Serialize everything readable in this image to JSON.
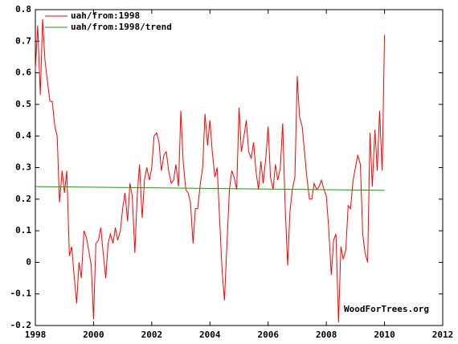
{
  "chart_data": {
    "type": "line",
    "annotation": "WoodForTrees.org",
    "xlim": [
      1998,
      2012
    ],
    "xticks": [
      1998,
      2000,
      2002,
      2004,
      2006,
      2008,
      2010,
      2012
    ],
    "ylim": [
      -0.2,
      0.8
    ],
    "yticks": [
      -0.2,
      -0.1,
      0,
      0.1,
      0.2,
      0.3,
      0.4,
      0.5,
      0.6,
      0.7,
      0.8
    ],
    "legend": "upper left",
    "series": [
      {
        "name": "uah/from:1998",
        "color": "#ff0000",
        "x": [
          1998.0,
          1998.08,
          1998.17,
          1998.25,
          1998.33,
          1998.42,
          1998.5,
          1998.58,
          1998.67,
          1998.75,
          1998.83,
          1998.92,
          1999.0,
          1999.08,
          1999.17,
          1999.25,
          1999.33,
          1999.42,
          1999.5,
          1999.58,
          1999.67,
          1999.75,
          1999.83,
          1999.92,
          2000.0,
          2000.08,
          2000.17,
          2000.25,
          2000.33,
          2000.42,
          2000.5,
          2000.58,
          2000.67,
          2000.75,
          2000.83,
          2000.92,
          2001.0,
          2001.08,
          2001.17,
          2001.25,
          2001.33,
          2001.42,
          2001.5,
          2001.58,
          2001.67,
          2001.75,
          2001.83,
          2001.92,
          2002.0,
          2002.08,
          2002.17,
          2002.25,
          2002.33,
          2002.42,
          2002.5,
          2002.58,
          2002.67,
          2002.75,
          2002.83,
          2002.92,
          2003.0,
          2003.08,
          2003.17,
          2003.25,
          2003.33,
          2003.42,
          2003.5,
          2003.58,
          2003.67,
          2003.75,
          2003.83,
          2003.92,
          2004.0,
          2004.08,
          2004.17,
          2004.25,
          2004.33,
          2004.42,
          2004.5,
          2004.58,
          2004.67,
          2004.75,
          2004.83,
          2004.92,
          2005.0,
          2005.08,
          2005.17,
          2005.25,
          2005.33,
          2005.42,
          2005.5,
          2005.58,
          2005.67,
          2005.75,
          2005.83,
          2005.92,
          2006.0,
          2006.08,
          2006.17,
          2006.25,
          2006.33,
          2006.42,
          2006.5,
          2006.58,
          2006.67,
          2006.75,
          2006.83,
          2006.92,
          2007.0,
          2007.08,
          2007.17,
          2007.25,
          2007.33,
          2007.42,
          2007.5,
          2007.58,
          2007.67,
          2007.75,
          2007.83,
          2007.92,
          2008.0,
          2008.08,
          2008.17,
          2008.25,
          2008.33,
          2008.42,
          2008.5,
          2008.58,
          2008.67,
          2008.75,
          2008.83,
          2008.92,
          2009.0,
          2009.08,
          2009.17,
          2009.25,
          2009.33,
          2009.42,
          2009.5,
          2009.58,
          2009.67,
          2009.75,
          2009.83,
          2009.92,
          2010.0
        ],
        "values": [
          0.61,
          0.75,
          0.53,
          0.77,
          0.64,
          0.57,
          0.51,
          0.51,
          0.43,
          0.4,
          0.19,
          0.29,
          0.22,
          0.29,
          0.02,
          0.05,
          -0.04,
          -0.13,
          0.0,
          -0.05,
          0.1,
          0.08,
          0.04,
          -0.01,
          -0.18,
          0.06,
          0.07,
          0.11,
          0.03,
          -0.05,
          0.06,
          0.09,
          0.06,
          0.11,
          0.07,
          0.1,
          0.17,
          0.22,
          0.13,
          0.25,
          0.21,
          0.03,
          0.21,
          0.31,
          0.14,
          0.26,
          0.3,
          0.26,
          0.3,
          0.4,
          0.41,
          0.38,
          0.29,
          0.34,
          0.35,
          0.29,
          0.25,
          0.26,
          0.31,
          0.24,
          0.48,
          0.32,
          0.23,
          0.22,
          0.19,
          0.06,
          0.17,
          0.17,
          0.25,
          0.3,
          0.47,
          0.37,
          0.45,
          0.35,
          0.27,
          0.3,
          0.14,
          -0.03,
          -0.12,
          0.05,
          0.23,
          0.29,
          0.27,
          0.23,
          0.49,
          0.35,
          0.4,
          0.45,
          0.35,
          0.33,
          0.38,
          0.29,
          0.23,
          0.32,
          0.25,
          0.33,
          0.43,
          0.27,
          0.23,
          0.31,
          0.26,
          0.3,
          0.44,
          0.19,
          -0.01,
          0.16,
          0.23,
          0.27,
          0.59,
          0.46,
          0.43,
          0.35,
          0.27,
          0.2,
          0.2,
          0.25,
          0.23,
          0.24,
          0.26,
          0.23,
          0.21,
          0.11,
          -0.04,
          0.07,
          0.09,
          -0.19,
          0.05,
          0.01,
          0.04,
          0.18,
          0.17,
          0.26,
          0.3,
          0.34,
          0.31,
          0.09,
          0.03,
          0.0,
          0.41,
          0.24,
          0.42,
          0.29,
          0.48,
          0.29,
          0.72
        ]
      },
      {
        "name": "uah/from:1998/trend",
        "color": "#00aa00",
        "x": [
          1998.0,
          2010.0
        ],
        "values": [
          0.24,
          0.228
        ]
      }
    ]
  }
}
